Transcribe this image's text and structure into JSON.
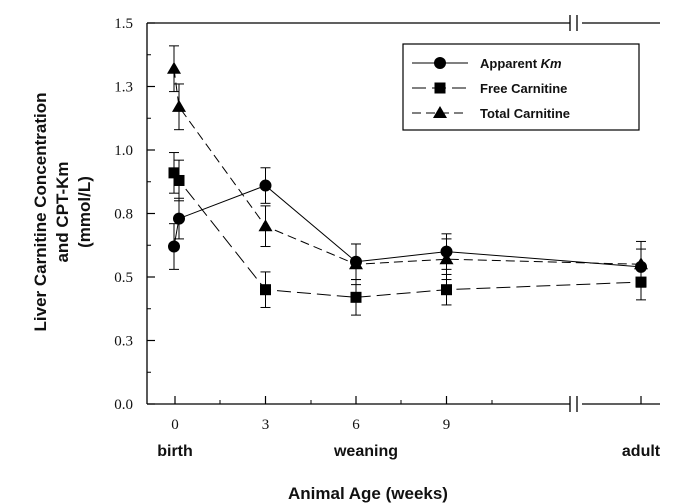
{
  "chart_data": {
    "type": "line",
    "ylabel_lines": [
      "Liver Carnitine Concentration",
      "and CPT-Km",
      "(mmol/L)"
    ],
    "xlabel": "Animal Age (weeks)",
    "ylim": [
      0.0,
      1.5
    ],
    "y_ticks": [
      "0.0",
      "0.3",
      "0.5",
      "0.8",
      "1.0",
      "1.3",
      "1.5"
    ],
    "y_tick_values": [
      0.0,
      0.25,
      0.5,
      0.75,
      1.0,
      1.25,
      1.5
    ],
    "x_ticks": [
      "0",
      "3",
      "6",
      "9"
    ],
    "x_tick_values": [
      0,
      3,
      6,
      9
    ],
    "x_categories": [
      "birth",
      "weaning",
      "adult"
    ],
    "axis_break": true,
    "legend_position": "top-right",
    "series": [
      {
        "name": "Apparent Km",
        "marker": "circle",
        "line": "solid",
        "x": [
          0,
          0,
          3,
          6,
          9,
          "adult"
        ],
        "y": [
          0.62,
          0.73,
          0.86,
          0.56,
          0.6,
          0.54
        ],
        "err": [
          0.09,
          0.08,
          0.07,
          0.07,
          0.07,
          0.07
        ]
      },
      {
        "name": "Free Carnitine",
        "marker": "square",
        "line": "long-dash",
        "x": [
          0,
          0,
          3,
          6,
          9,
          "adult"
        ],
        "y": [
          0.91,
          0.88,
          0.45,
          0.42,
          0.45,
          0.48
        ],
        "err": [
          0.08,
          0.08,
          0.07,
          0.07,
          0.06,
          0.07
        ]
      },
      {
        "name": "Total Carnitine",
        "marker": "triangle",
        "line": "dash",
        "x": [
          0,
          0,
          3,
          6,
          9,
          "adult"
        ],
        "y": [
          1.32,
          1.17,
          0.7,
          0.55,
          0.57,
          0.55
        ],
        "err": [
          0.09,
          0.09,
          0.08,
          0.08,
          0.08,
          0.09
        ]
      }
    ]
  }
}
